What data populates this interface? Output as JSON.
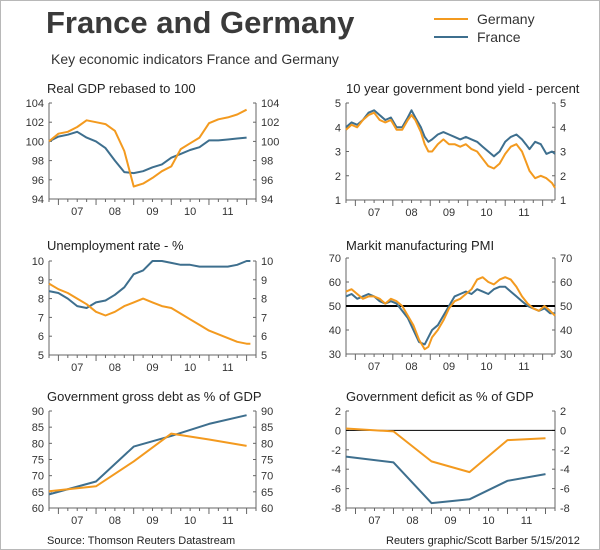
{
  "header": {
    "title": "France and Germany",
    "subtitle": "Key economic indicators France and Germany"
  },
  "legend": [
    {
      "name": "Germany",
      "color": "#f39a1f"
    },
    {
      "name": "France",
      "color": "#3e6f8e"
    }
  ],
  "footer": {
    "source": "Source: Thomson Reuters Datastream",
    "credit": "Reuters graphic/Scott Barber 5/15/2012"
  },
  "colors": {
    "germany": "#f39a1f",
    "france": "#3e6f8e",
    "axis": "#666666",
    "grid": "#cccccc"
  },
  "chart_data": [
    {
      "id": "gdp",
      "type": "line",
      "title": "Real GDP rebased to 100",
      "x_ticks": [
        "07",
        "08",
        "09",
        "10",
        "11"
      ],
      "xlim": [
        2006.75,
        2012.25
      ],
      "ylim": [
        94,
        104
      ],
      "y_ticks": [
        94,
        96,
        98,
        100,
        102,
        104
      ],
      "grid": false,
      "series": [
        {
          "name": "Germany",
          "x": [
            2006.75,
            2007.0,
            2007.25,
            2007.5,
            2007.75,
            2008.0,
            2008.25,
            2008.5,
            2008.75,
            2009.0,
            2009.25,
            2009.5,
            2009.75,
            2010.0,
            2010.25,
            2010.5,
            2010.75,
            2011.0,
            2011.25,
            2011.5,
            2011.75,
            2012.0
          ],
          "y": [
            100.0,
            100.8,
            101.0,
            101.5,
            102.2,
            102.0,
            101.8,
            101.1,
            99.0,
            95.3,
            95.6,
            96.2,
            96.9,
            97.4,
            99.2,
            99.8,
            100.4,
            101.9,
            102.3,
            102.5,
            102.8,
            103.3
          ]
        },
        {
          "name": "France",
          "x": [
            2006.75,
            2007.0,
            2007.25,
            2007.5,
            2007.75,
            2008.0,
            2008.25,
            2008.5,
            2008.75,
            2009.0,
            2009.25,
            2009.5,
            2009.75,
            2010.0,
            2010.25,
            2010.5,
            2010.75,
            2011.0,
            2011.25,
            2011.5,
            2011.75,
            2012.0
          ],
          "y": [
            100.0,
            100.5,
            100.7,
            101.0,
            100.4,
            100.0,
            99.3,
            98.0,
            96.8,
            96.7,
            96.9,
            97.3,
            97.6,
            98.3,
            98.7,
            99.1,
            99.4,
            100.1,
            100.1,
            100.2,
            100.3,
            100.4
          ]
        }
      ]
    },
    {
      "id": "bond",
      "type": "line",
      "title": "10 year government bond yield - percent",
      "x_ticks": [
        "07",
        "08",
        "09",
        "10",
        "11"
      ],
      "xlim": [
        2006.75,
        2012.33
      ],
      "ylim": [
        1,
        5
      ],
      "y_ticks": [
        1,
        2,
        3,
        4,
        5
      ],
      "grid": false,
      "series": [
        {
          "name": "Germany",
          "x": [
            2006.75,
            2006.9,
            2007.05,
            2007.2,
            2007.35,
            2007.5,
            2007.65,
            2007.8,
            2007.95,
            2008.1,
            2008.25,
            2008.4,
            2008.5,
            2008.6,
            2008.75,
            2008.85,
            2008.95,
            2009.05,
            2009.2,
            2009.35,
            2009.5,
            2009.65,
            2009.8,
            2009.95,
            2010.1,
            2010.25,
            2010.4,
            2010.55,
            2010.7,
            2010.85,
            2011.0,
            2011.15,
            2011.3,
            2011.45,
            2011.55,
            2011.65,
            2011.8,
            2011.95,
            2012.1,
            2012.25,
            2012.33
          ],
          "y": [
            3.9,
            4.1,
            4.0,
            4.3,
            4.5,
            4.6,
            4.3,
            4.2,
            4.3,
            3.9,
            3.9,
            4.3,
            4.5,
            4.3,
            3.8,
            3.3,
            3.0,
            3.0,
            3.3,
            3.5,
            3.3,
            3.3,
            3.2,
            3.3,
            3.1,
            3.0,
            2.7,
            2.4,
            2.3,
            2.5,
            2.9,
            3.2,
            3.3,
            3.0,
            2.6,
            2.2,
            1.9,
            2.0,
            1.9,
            1.7,
            1.5
          ]
        },
        {
          "name": "France",
          "x": [
            2006.75,
            2006.9,
            2007.05,
            2007.2,
            2007.35,
            2007.5,
            2007.65,
            2007.8,
            2007.95,
            2008.1,
            2008.25,
            2008.4,
            2008.5,
            2008.6,
            2008.75,
            2008.85,
            2008.95,
            2009.05,
            2009.2,
            2009.35,
            2009.5,
            2009.65,
            2009.8,
            2009.95,
            2010.1,
            2010.25,
            2010.4,
            2010.55,
            2010.7,
            2010.85,
            2011.0,
            2011.15,
            2011.3,
            2011.45,
            2011.55,
            2011.65,
            2011.8,
            2011.95,
            2012.1,
            2012.25,
            2012.33
          ],
          "y": [
            4.0,
            4.2,
            4.1,
            4.3,
            4.6,
            4.7,
            4.5,
            4.3,
            4.4,
            4.0,
            4.0,
            4.4,
            4.7,
            4.4,
            4.0,
            3.6,
            3.4,
            3.5,
            3.7,
            3.8,
            3.7,
            3.6,
            3.5,
            3.6,
            3.5,
            3.4,
            3.2,
            3.0,
            2.8,
            3.0,
            3.4,
            3.6,
            3.7,
            3.5,
            3.3,
            3.1,
            3.4,
            3.3,
            2.9,
            3.0,
            2.9
          ]
        }
      ]
    },
    {
      "id": "unemp",
      "type": "line",
      "title": "Unemployment rate - %",
      "x_ticks": [
        "07",
        "08",
        "09",
        "10",
        "11"
      ],
      "xlim": [
        2006.75,
        2012.25
      ],
      "ylim": [
        5,
        10
      ],
      "y_ticks": [
        5,
        6,
        7,
        8,
        9,
        10
      ],
      "grid": false,
      "series": [
        {
          "name": "Germany",
          "x": [
            2006.75,
            2007.0,
            2007.25,
            2007.5,
            2007.75,
            2008.0,
            2008.25,
            2008.5,
            2008.75,
            2009.0,
            2009.25,
            2009.5,
            2009.75,
            2010.0,
            2010.25,
            2010.5,
            2010.75,
            2011.0,
            2011.25,
            2011.5,
            2011.75,
            2012.0,
            2012.1
          ],
          "y": [
            8.8,
            8.5,
            8.3,
            8.0,
            7.7,
            7.3,
            7.1,
            7.3,
            7.6,
            7.8,
            8.0,
            7.8,
            7.6,
            7.5,
            7.2,
            6.9,
            6.6,
            6.3,
            6.1,
            5.9,
            5.7,
            5.6,
            5.6
          ]
        },
        {
          "name": "France",
          "x": [
            2006.75,
            2007.0,
            2007.25,
            2007.5,
            2007.75,
            2008.0,
            2008.25,
            2008.5,
            2008.75,
            2009.0,
            2009.25,
            2009.5,
            2009.75,
            2010.0,
            2010.25,
            2010.5,
            2010.75,
            2011.0,
            2011.25,
            2011.5,
            2011.75,
            2012.0,
            2012.1
          ],
          "y": [
            8.4,
            8.3,
            8.0,
            7.6,
            7.5,
            7.8,
            7.9,
            8.2,
            8.6,
            9.3,
            9.5,
            10.0,
            10.0,
            9.9,
            9.8,
            9.8,
            9.7,
            9.7,
            9.7,
            9.7,
            9.8,
            10.0,
            10.0
          ]
        }
      ]
    },
    {
      "id": "pmi",
      "type": "line",
      "title": "Markit manufacturing PMI",
      "x_ticks": [
        "07",
        "08",
        "09",
        "10",
        "11"
      ],
      "xlim": [
        2006.75,
        2012.33
      ],
      "ylim": [
        30,
        70
      ],
      "y_ticks": [
        30,
        40,
        50,
        60,
        70
      ],
      "reference_line": 50,
      "grid": false,
      "series": [
        {
          "name": "Germany",
          "x": [
            2006.75,
            2006.9,
            2007.05,
            2007.2,
            2007.35,
            2007.5,
            2007.65,
            2007.8,
            2007.95,
            2008.1,
            2008.25,
            2008.4,
            2008.55,
            2008.7,
            2008.85,
            2008.95,
            2009.05,
            2009.2,
            2009.35,
            2009.5,
            2009.65,
            2009.8,
            2009.95,
            2010.1,
            2010.25,
            2010.4,
            2010.55,
            2010.7,
            2010.85,
            2011.0,
            2011.15,
            2011.3,
            2011.45,
            2011.6,
            2011.75,
            2011.9,
            2012.05,
            2012.2,
            2012.33
          ],
          "y": [
            56,
            57,
            55,
            53,
            54,
            54,
            53,
            51,
            53,
            52,
            50,
            46,
            42,
            36,
            32,
            33,
            37,
            40,
            44,
            49,
            52,
            53,
            55,
            57,
            61,
            62,
            60,
            59,
            61,
            62,
            61,
            58,
            54,
            51,
            49,
            48,
            50,
            48,
            46
          ]
        },
        {
          "name": "France",
          "x": [
            2006.75,
            2006.9,
            2007.05,
            2007.2,
            2007.35,
            2007.5,
            2007.65,
            2007.8,
            2007.95,
            2008.1,
            2008.25,
            2008.4,
            2008.55,
            2008.7,
            2008.85,
            2008.95,
            2009.05,
            2009.2,
            2009.35,
            2009.5,
            2009.65,
            2009.8,
            2009.95,
            2010.1,
            2010.25,
            2010.4,
            2010.55,
            2010.7,
            2010.85,
            2011.0,
            2011.15,
            2011.3,
            2011.45,
            2011.6,
            2011.75,
            2011.9,
            2012.05,
            2012.2,
            2012.33
          ],
          "y": [
            54,
            55,
            53,
            54,
            55,
            54,
            52,
            51,
            52,
            51,
            48,
            45,
            40,
            35,
            34,
            37,
            40,
            42,
            46,
            50,
            54,
            55,
            56,
            55,
            57,
            56,
            55,
            57,
            58,
            58,
            56,
            54,
            52,
            50,
            49,
            48,
            49,
            47,
            47
          ]
        }
      ]
    },
    {
      "id": "debt",
      "type": "line",
      "title": "Government gross debt as % of GDP",
      "x_ticks": [
        "07",
        "08",
        "09",
        "10",
        "11"
      ],
      "xlim": [
        2006.75,
        2012.25
      ],
      "ylim": [
        60,
        90
      ],
      "y_ticks": [
        60,
        65,
        70,
        75,
        80,
        85,
        90
      ],
      "grid": false,
      "series": [
        {
          "name": "Germany",
          "x": [
            2006.75,
            2008.0,
            2009.0,
            2010.0,
            2011.0,
            2012.0
          ],
          "y": [
            65.2,
            66.7,
            74.4,
            83.0,
            81.2,
            79.2
          ]
        },
        {
          "name": "France",
          "x": [
            2006.75,
            2008.0,
            2009.0,
            2010.0,
            2011.0,
            2012.0
          ],
          "y": [
            64.2,
            68.2,
            79.0,
            82.3,
            86.0,
            88.7
          ]
        }
      ]
    },
    {
      "id": "deficit",
      "type": "line",
      "title": "Government deficit as % of GDP",
      "x_ticks": [
        "07",
        "08",
        "09",
        "10",
        "11"
      ],
      "xlim": [
        2006.75,
        2012.25
      ],
      "ylim": [
        -8,
        2
      ],
      "y_ticks": [
        -8,
        -6,
        -4,
        -2,
        0,
        2
      ],
      "reference_line": 0,
      "grid": false,
      "series": [
        {
          "name": "Germany",
          "x": [
            2006.75,
            2008.0,
            2009.0,
            2010.0,
            2011.0,
            2012.0
          ],
          "y": [
            0.2,
            -0.1,
            -3.2,
            -4.3,
            -1.0,
            -0.8
          ]
        },
        {
          "name": "France",
          "x": [
            2006.75,
            2008.0,
            2009.0,
            2010.0,
            2011.0,
            2012.0
          ],
          "y": [
            -2.7,
            -3.3,
            -7.5,
            -7.1,
            -5.2,
            -4.5
          ]
        }
      ]
    }
  ]
}
